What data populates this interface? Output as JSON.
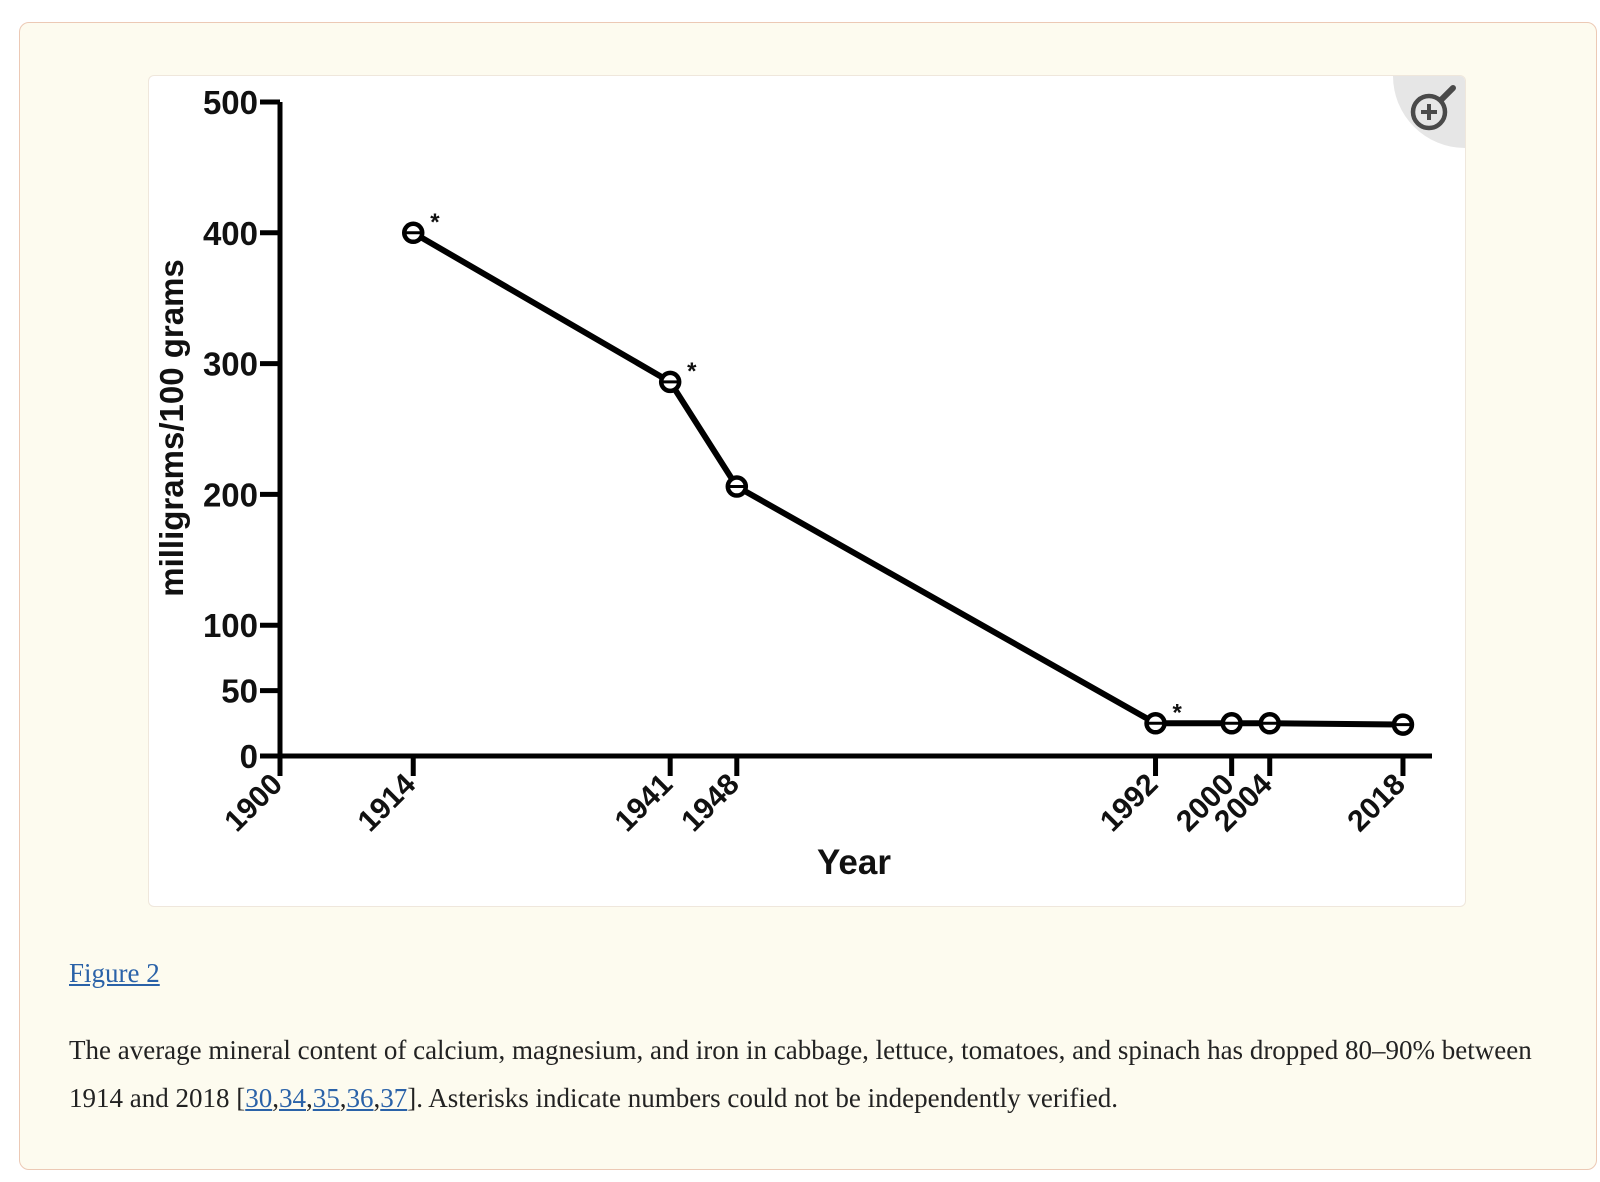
{
  "figure": {
    "label": "Figure 2",
    "caption_pre": "The average mineral content of calcium, magnesium, and iron in cabbage, lettuce, tomatoes, and spinach has dropped 80–90% between 1914 and 2018 [",
    "refs": [
      "30",
      "34",
      "35",
      "36",
      "37"
    ],
    "caption_post": "]. Asterisks indicate numbers could not be independently verified.",
    "zoom_icon": "zoom-in-icon"
  },
  "chart_data": {
    "type": "line",
    "title": "",
    "xlabel": "Year",
    "ylabel": "milligrams/100 grams",
    "x": [
      1914,
      1941,
      1948,
      1992,
      2000,
      2004,
      2018
    ],
    "y": [
      400,
      286,
      206,
      25,
      25,
      25,
      24
    ],
    "verified": [
      false,
      false,
      true,
      false,
      true,
      true,
      true
    ],
    "annotation": "*",
    "xlim": [
      1900,
      2020
    ],
    "ylim": [
      0,
      500
    ],
    "xticks": [
      1900,
      1914,
      1941,
      1948,
      1992,
      2000,
      2004,
      2018
    ],
    "yticks": [
      0,
      50,
      100,
      200,
      300,
      400,
      500
    ],
    "grid": false,
    "line_color": "#000000"
  }
}
